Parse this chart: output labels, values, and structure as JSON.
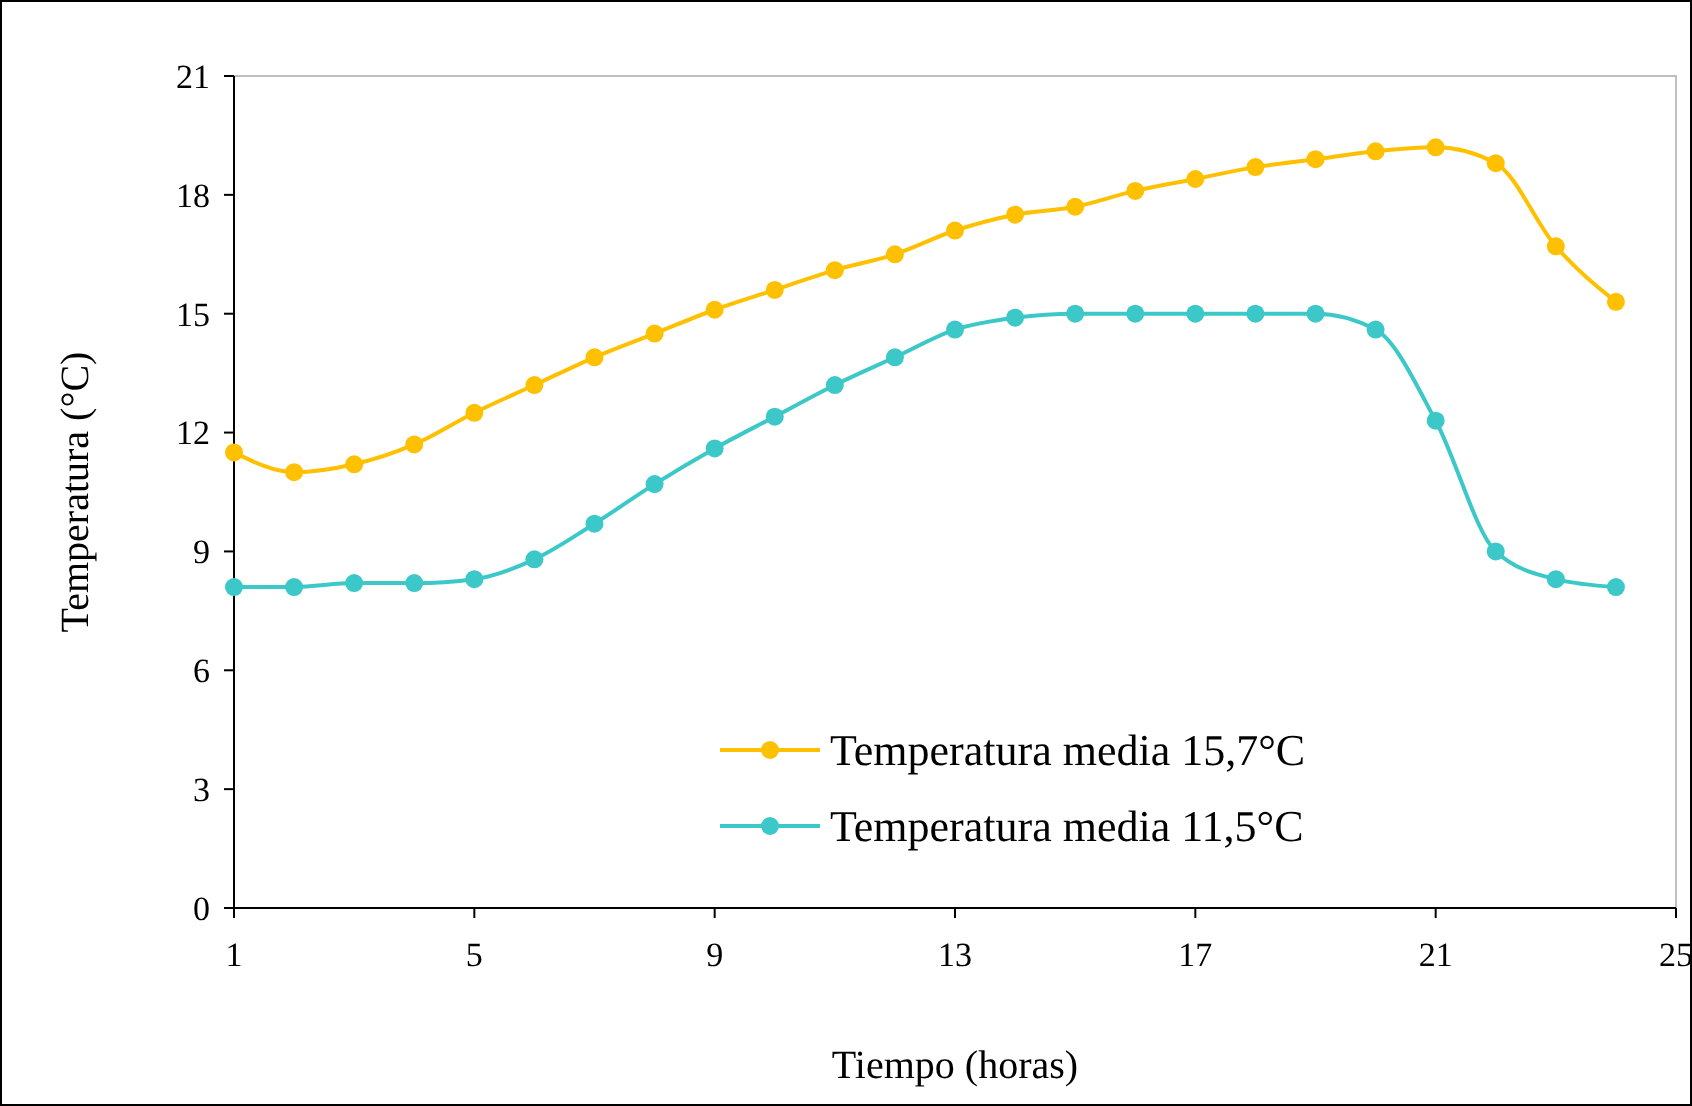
{
  "chart_data": {
    "type": "line",
    "xlabel": "Tiempo (horas)",
    "ylabel": "Temperatura (°C)",
    "x": [
      1,
      2,
      3,
      4,
      5,
      6,
      7,
      8,
      9,
      10,
      11,
      12,
      13,
      14,
      15,
      16,
      17,
      18,
      19,
      20,
      21,
      22,
      23,
      24
    ],
    "xlim": [
      1,
      25
    ],
    "xticks": [
      1,
      5,
      9,
      13,
      17,
      21,
      25
    ],
    "ylim": [
      0,
      21
    ],
    "yticks": [
      0,
      3,
      6,
      9,
      12,
      15,
      18,
      21
    ],
    "grid": false,
    "legend": "bottom",
    "marker": "circle",
    "line_style": "solid",
    "series": [
      {
        "name": "Temperatura media 15,7°C",
        "color": "#ffc000",
        "values": [
          11.5,
          11.0,
          11.2,
          11.7,
          12.5,
          13.2,
          13.9,
          14.5,
          15.1,
          15.6,
          16.1,
          16.5,
          17.1,
          17.5,
          17.7,
          18.1,
          18.4,
          18.7,
          18.9,
          19.1,
          19.2,
          18.8,
          16.7,
          15.3
        ]
      },
      {
        "name": "Temperatura media 11,5°C",
        "color": "#3cc8c8",
        "values": [
          8.1,
          8.1,
          8.2,
          8.2,
          8.3,
          8.8,
          9.7,
          10.7,
          11.6,
          12.4,
          13.2,
          13.9,
          14.6,
          14.9,
          15.0,
          15.0,
          15.0,
          15.0,
          15.0,
          14.6,
          12.3,
          9.0,
          8.3,
          8.1
        ]
      }
    ]
  }
}
